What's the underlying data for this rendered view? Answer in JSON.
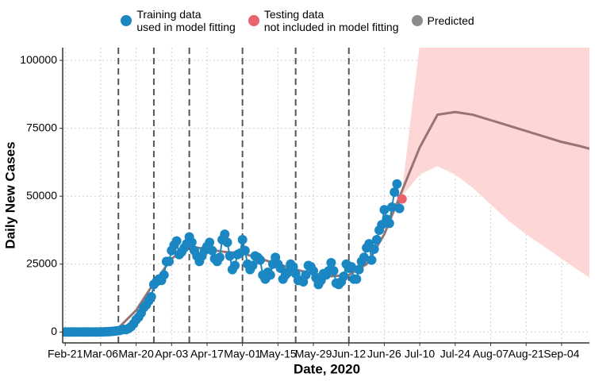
{
  "chart_data": {
    "type": "line",
    "x_label": "Date, 2020",
    "y_label": "Daily New Cases",
    "xlim": [
      "2020-02-20",
      "2020-09-15"
    ],
    "ylim": [
      -4000,
      104700
    ],
    "xticks": [
      {
        "value": "2020-02-21",
        "label": "Feb-21"
      },
      {
        "value": "2020-03-06",
        "label": "Mar-06"
      },
      {
        "value": "2020-03-20",
        "label": "Mar-20"
      },
      {
        "value": "2020-04-03",
        "label": "Apr-03"
      },
      {
        "value": "2020-04-17",
        "label": "Apr-17"
      },
      {
        "value": "2020-05-01",
        "label": "May-01"
      },
      {
        "value": "2020-05-15",
        "label": "May-15"
      },
      {
        "value": "2020-05-29",
        "label": "May-29"
      },
      {
        "value": "2020-06-12",
        "label": "Jun-12"
      },
      {
        "value": "2020-06-26",
        "label": "Jun-26"
      },
      {
        "value": "2020-07-10",
        "label": "Jul-10"
      },
      {
        "value": "2020-07-24",
        "label": "Jul-24"
      },
      {
        "value": "2020-08-07",
        "label": "Aug-07"
      },
      {
        "value": "2020-08-21",
        "label": "Aug-21"
      },
      {
        "value": "2020-09-04",
        "label": "Sep-04"
      }
    ],
    "yticks": [
      0,
      25000,
      50000,
      75000,
      100000
    ],
    "grid": true,
    "legend": "top",
    "vlines": [
      "2020-03-13",
      "2020-03-27",
      "2020-04-10",
      "2020-05-01",
      "2020-05-22",
      "2020-06-12"
    ],
    "vline_color": "#555555",
    "series": [
      {
        "name": "Training data\nused in model fitting",
        "color": "#1a87c2",
        "markers": true,
        "line": true,
        "x": [
          "2020-02-21",
          "2020-02-22",
          "2020-02-23",
          "2020-02-24",
          "2020-02-25",
          "2020-02-26",
          "2020-02-27",
          "2020-02-28",
          "2020-02-29",
          "2020-03-01",
          "2020-03-02",
          "2020-03-03",
          "2020-03-04",
          "2020-03-05",
          "2020-03-06",
          "2020-03-07",
          "2020-03-08",
          "2020-03-09",
          "2020-03-10",
          "2020-03-11",
          "2020-03-12",
          "2020-03-13",
          "2020-03-14",
          "2020-03-15",
          "2020-03-16",
          "2020-03-17",
          "2020-03-18",
          "2020-03-19",
          "2020-03-20",
          "2020-03-21",
          "2020-03-22",
          "2020-03-23",
          "2020-03-24",
          "2020-03-25",
          "2020-03-26",
          "2020-03-27",
          "2020-03-28",
          "2020-03-29",
          "2020-03-30",
          "2020-03-31",
          "2020-04-01",
          "2020-04-02",
          "2020-04-03",
          "2020-04-04",
          "2020-04-05",
          "2020-04-06",
          "2020-04-07",
          "2020-04-08",
          "2020-04-09",
          "2020-04-10",
          "2020-04-11",
          "2020-04-12",
          "2020-04-13",
          "2020-04-14",
          "2020-04-15",
          "2020-04-16",
          "2020-04-17",
          "2020-04-18",
          "2020-04-19",
          "2020-04-20",
          "2020-04-21",
          "2020-04-22",
          "2020-04-23",
          "2020-04-24",
          "2020-04-25",
          "2020-04-26",
          "2020-04-27",
          "2020-04-28",
          "2020-04-29",
          "2020-04-30",
          "2020-05-01",
          "2020-05-02",
          "2020-05-03",
          "2020-05-04",
          "2020-05-05",
          "2020-05-06",
          "2020-05-07",
          "2020-05-08",
          "2020-05-09",
          "2020-05-10",
          "2020-05-11",
          "2020-05-12",
          "2020-05-13",
          "2020-05-14",
          "2020-05-15",
          "2020-05-16",
          "2020-05-17",
          "2020-05-18",
          "2020-05-19",
          "2020-05-20",
          "2020-05-21",
          "2020-05-22",
          "2020-05-23",
          "2020-05-24",
          "2020-05-25",
          "2020-05-26",
          "2020-05-27",
          "2020-05-28",
          "2020-05-29",
          "2020-05-30",
          "2020-05-31",
          "2020-06-01",
          "2020-06-02",
          "2020-06-03",
          "2020-06-04",
          "2020-06-05",
          "2020-06-06",
          "2020-06-07",
          "2020-06-08",
          "2020-06-09",
          "2020-06-10",
          "2020-06-11",
          "2020-06-12",
          "2020-06-13",
          "2020-06-14",
          "2020-06-15",
          "2020-06-16",
          "2020-06-17",
          "2020-06-18",
          "2020-06-19",
          "2020-06-20",
          "2020-06-21",
          "2020-06-22",
          "2020-06-23",
          "2020-06-24",
          "2020-06-25",
          "2020-06-26",
          "2020-06-27",
          "2020-06-28",
          "2020-06-29",
          "2020-06-30",
          "2020-07-01",
          "2020-07-02"
        ],
        "values": [
          0,
          0,
          0,
          0,
          0,
          0,
          0,
          0,
          0,
          0,
          0,
          0,
          0,
          10,
          50,
          60,
          120,
          120,
          200,
          290,
          400,
          500,
          700,
          1000,
          900,
          1300,
          2000,
          3000,
          4500,
          5500,
          7000,
          9000,
          10000,
          11500,
          13000,
          17500,
          18500,
          19500,
          19000,
          21000,
          26000,
          26000,
          30000,
          32000,
          33500,
          28500,
          29500,
          31000,
          32500,
          35000,
          33000,
          30000,
          28000,
          26000,
          28000,
          30000,
          31500,
          33000,
          30000,
          27000,
          26000,
          27500,
          34000,
          36000,
          33000,
          28000,
          23000,
          24500,
          28500,
          29000,
          34000,
          30000,
          25000,
          23000,
          24500,
          28000,
          27500,
          26500,
          21000,
          19500,
          22000,
          21000,
          25000,
          27500,
          25000,
          23500,
          19500,
          21000,
          22000,
          25000,
          24000,
          21500,
          19000,
          19000,
          18500,
          21000,
          24500,
          24000,
          22500,
          20000,
          17500,
          19000,
          21500,
          21000,
          22500,
          25500,
          22500,
          18000,
          17500,
          18500,
          20500,
          25000,
          23500,
          24000,
          19500,
          19500,
          23000,
          26000,
          27500,
          31000,
          32500,
          26500,
          30500,
          34000,
          37500,
          39500,
          45000,
          41500,
          40000,
          46000,
          51500,
          54500,
          45500
        ]
      },
      {
        "name": "Testing data\nnot included in model fitting",
        "color": "#e8636b",
        "markers": true,
        "line": false,
        "x": [
          "2020-07-03"
        ],
        "values": [
          49000
        ]
      },
      {
        "name": "Predicted",
        "color": "#8c8c8c",
        "markers": false,
        "line": true,
        "line_color": "#977575",
        "band_color": "#fdd6d6",
        "x": [
          "2020-02-21",
          "2020-03-06",
          "2020-03-13",
          "2020-03-20",
          "2020-03-27",
          "2020-04-03",
          "2020-04-10",
          "2020-04-17",
          "2020-04-24",
          "2020-05-01",
          "2020-05-08",
          "2020-05-15",
          "2020-05-22",
          "2020-05-29",
          "2020-06-05",
          "2020-06-12",
          "2020-06-19",
          "2020-06-26",
          "2020-07-03",
          "2020-07-10",
          "2020-07-17",
          "2020-07-24",
          "2020-07-31",
          "2020-08-07",
          "2020-08-14",
          "2020-08-21",
          "2020-08-28",
          "2020-09-04",
          "2020-09-11",
          "2020-09-15"
        ],
        "values": [
          0,
          200,
          1500,
          8000,
          18000,
          27000,
          31500,
          30500,
          29500,
          29000,
          27000,
          25000,
          23000,
          21500,
          20500,
          21000,
          25000,
          36000,
          52000,
          68000,
          80000,
          81000,
          80000,
          78000,
          76000,
          74000,
          72000,
          70000,
          68500,
          67500
        ],
        "lower": [
          null,
          null,
          null,
          null,
          null,
          null,
          null,
          null,
          null,
          null,
          null,
          null,
          null,
          null,
          null,
          null,
          null,
          null,
          50000,
          58000,
          61000,
          58000,
          53000,
          47000,
          41000,
          36000,
          31500,
          27000,
          22500,
          20000
        ],
        "upper": [
          null,
          null,
          null,
          null,
          null,
          null,
          null,
          null,
          null,
          null,
          null,
          null,
          null,
          null,
          null,
          null,
          null,
          null,
          52000,
          106000,
          125000,
          135000,
          140000,
          142000,
          143000,
          143000,
          143000,
          143000,
          143000,
          143000
        ]
      }
    ]
  }
}
